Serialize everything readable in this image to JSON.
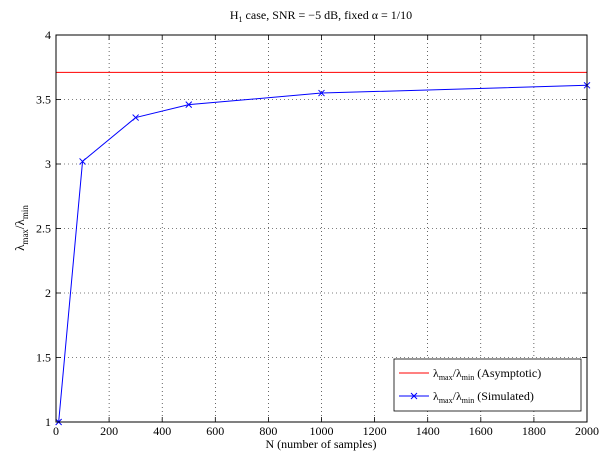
{
  "chart_data": {
    "type": "line",
    "title": "H_1 case, SNR = −5 dB, fixed α = 1/10",
    "title_parts": {
      "main": "H",
      "sub": "1",
      "rest": " case, SNR = −5 dB, fixed α = 1/10"
    },
    "xlabel": "N (number of samples)",
    "ylabel": "λ_max/λ_min",
    "ylabel_parts": {
      "l1": "λ",
      "s1": "max",
      "sep": "/λ",
      "s2": "min"
    },
    "xlim": [
      0,
      2000
    ],
    "ylim": [
      1,
      4
    ],
    "xticks": [
      0,
      200,
      400,
      600,
      800,
      1000,
      1200,
      1400,
      1600,
      1800,
      2000
    ],
    "yticks": [
      1,
      1.5,
      2,
      2.5,
      3,
      3.5,
      4
    ],
    "grid": true,
    "legend_position": "bottom-right",
    "series": [
      {
        "name": "λ_max/λ_min (Asymptotic)",
        "name_parts": {
          "l1": "λ",
          "s1": "max",
          "sep": "/λ",
          "s2": "min",
          "rest": " (Asymptotic)"
        },
        "color": "#ff0000",
        "marker": "none",
        "x": [
          0,
          2000
        ],
        "y": [
          3.71,
          3.71
        ]
      },
      {
        "name": "λ_max/λ_min (Simulated)",
        "name_parts": {
          "l1": "λ",
          "s1": "max",
          "sep": "/λ",
          "s2": "min",
          "rest": " (Simulated)"
        },
        "color": "#0000ff",
        "marker": "x",
        "x": [
          10,
          100,
          300,
          500,
          1000,
          2000
        ],
        "y": [
          1.0,
          3.02,
          3.36,
          3.46,
          3.55,
          3.61
        ]
      }
    ]
  }
}
